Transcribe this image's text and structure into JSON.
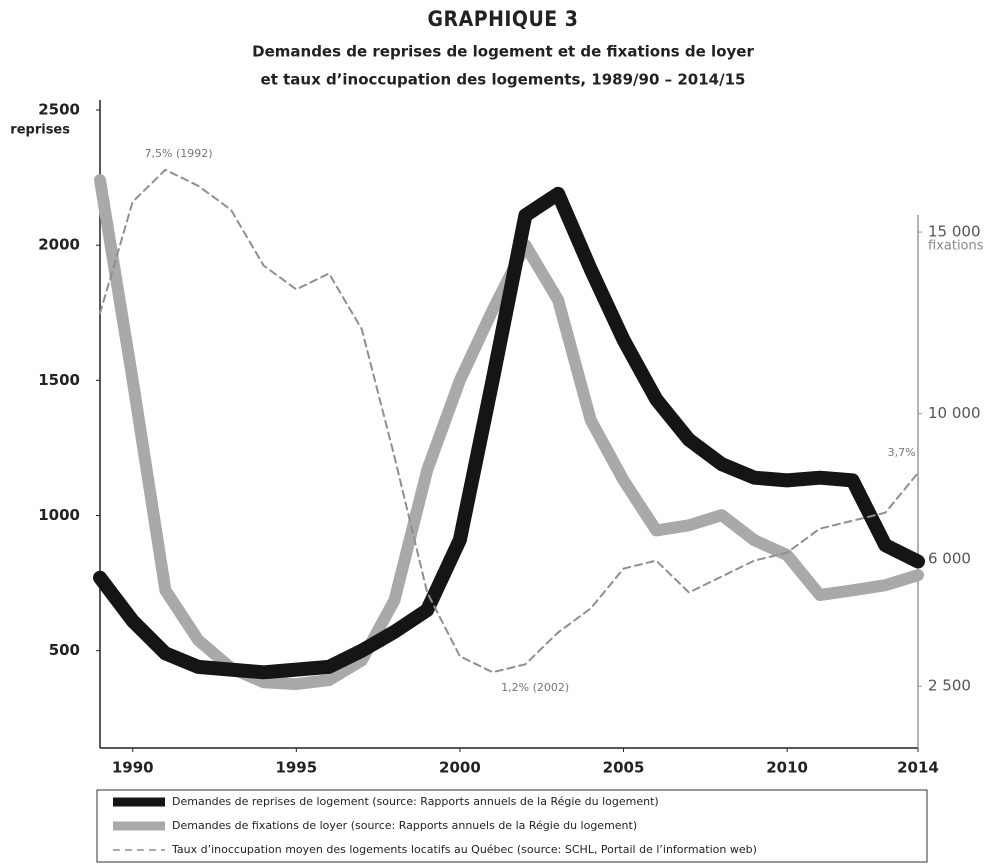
{
  "chart_data": {
    "type": "line",
    "title": "GRAPHIQUE 3",
    "subtitle": [
      "Demandes de reprises de logement et de fixations de loyer",
      "et taux d’inoccupation des logements, 1989/90 – 2014/15"
    ],
    "y_label": "reprises",
    "y2_label": "fixations",
    "x": [
      1989,
      1990,
      1991,
      1992,
      1993,
      1994,
      1995,
      1996,
      1997,
      1998,
      1999,
      2000,
      2001,
      2002,
      2003,
      2004,
      2005,
      2006,
      2007,
      2008,
      2009,
      2010,
      2011,
      2012,
      2013,
      2014
    ],
    "xlim": [
      1989,
      2014
    ],
    "xticks": [
      1990,
      1995,
      2000,
      2005,
      2010,
      2014
    ],
    "ylim": [
      140,
      2500
    ],
    "yticks": [
      500,
      1000,
      1500,
      2000,
      2500
    ],
    "y2lim": [
      800,
      18360
    ],
    "y2ticks": [
      {
        "value": 2500,
        "label": "2 500"
      },
      {
        "value": 6000,
        "label": "6 000"
      },
      {
        "value": 10000,
        "label": "10 000"
      },
      {
        "value": 15000,
        "label": "15 000"
      }
    ],
    "y3lim": [
      0.25,
      8.25
    ],
    "series": [
      {
        "name": "Demandes de reprises de logement (source: Rapports annuels de la Régie du logement)",
        "color": "#151515",
        "style": "solid",
        "width": 14,
        "values": [
          770,
          610,
          490,
          440,
          430,
          420,
          430,
          440,
          500,
          570,
          650,
          910,
          1500,
          2110,
          2190,
          1910,
          1650,
          1430,
          1280,
          1190,
          1140,
          1130,
          1140,
          1130,
          890,
          830
        ]
      },
      {
        "name": "Demandes de fixations de loyer (source: Rapports annuels de la Régie du logement)",
        "color": "#a9a9a9",
        "style": "solid",
        "width": 12,
        "axis": "y2",
        "values": [
          16430,
          10920,
          5140,
          3770,
          3000,
          2610,
          2560,
          2670,
          3210,
          4870,
          8450,
          10920,
          12850,
          14640,
          13130,
          9820,
          8170,
          6790,
          6930,
          7210,
          6520,
          6110,
          5010,
          5140,
          5280,
          5560
        ]
      },
      {
        "name": "Taux d’inoccupation moyen des logements locatifs au Québec (source: SCHL, Portail de l’information web)",
        "color": "#8f8f8f",
        "style": "dashed",
        "width": 2,
        "axis": "y3",
        "values": [
          5.7,
          7.1,
          7.5,
          7.3,
          7.0,
          6.3,
          6.0,
          6.2,
          5.5,
          3.9,
          2.2,
          1.4,
          1.2,
          1.3,
          1.7,
          2.0,
          2.5,
          2.6,
          2.2,
          2.4,
          2.6,
          2.7,
          3.0,
          3.1,
          3.2,
          3.7
        ]
      }
    ],
    "annotations": [
      {
        "text": "7,5% (1992)",
        "x": 1991.4,
        "y": 7.7,
        "axis": "y3"
      },
      {
        "text": "1,2% (2002)",
        "x": 2002.3,
        "y": 1.0,
        "axis": "y3"
      },
      {
        "text": "3,7%",
        "x": 2013.5,
        "y": 3.95,
        "axis": "y3"
      }
    ]
  }
}
